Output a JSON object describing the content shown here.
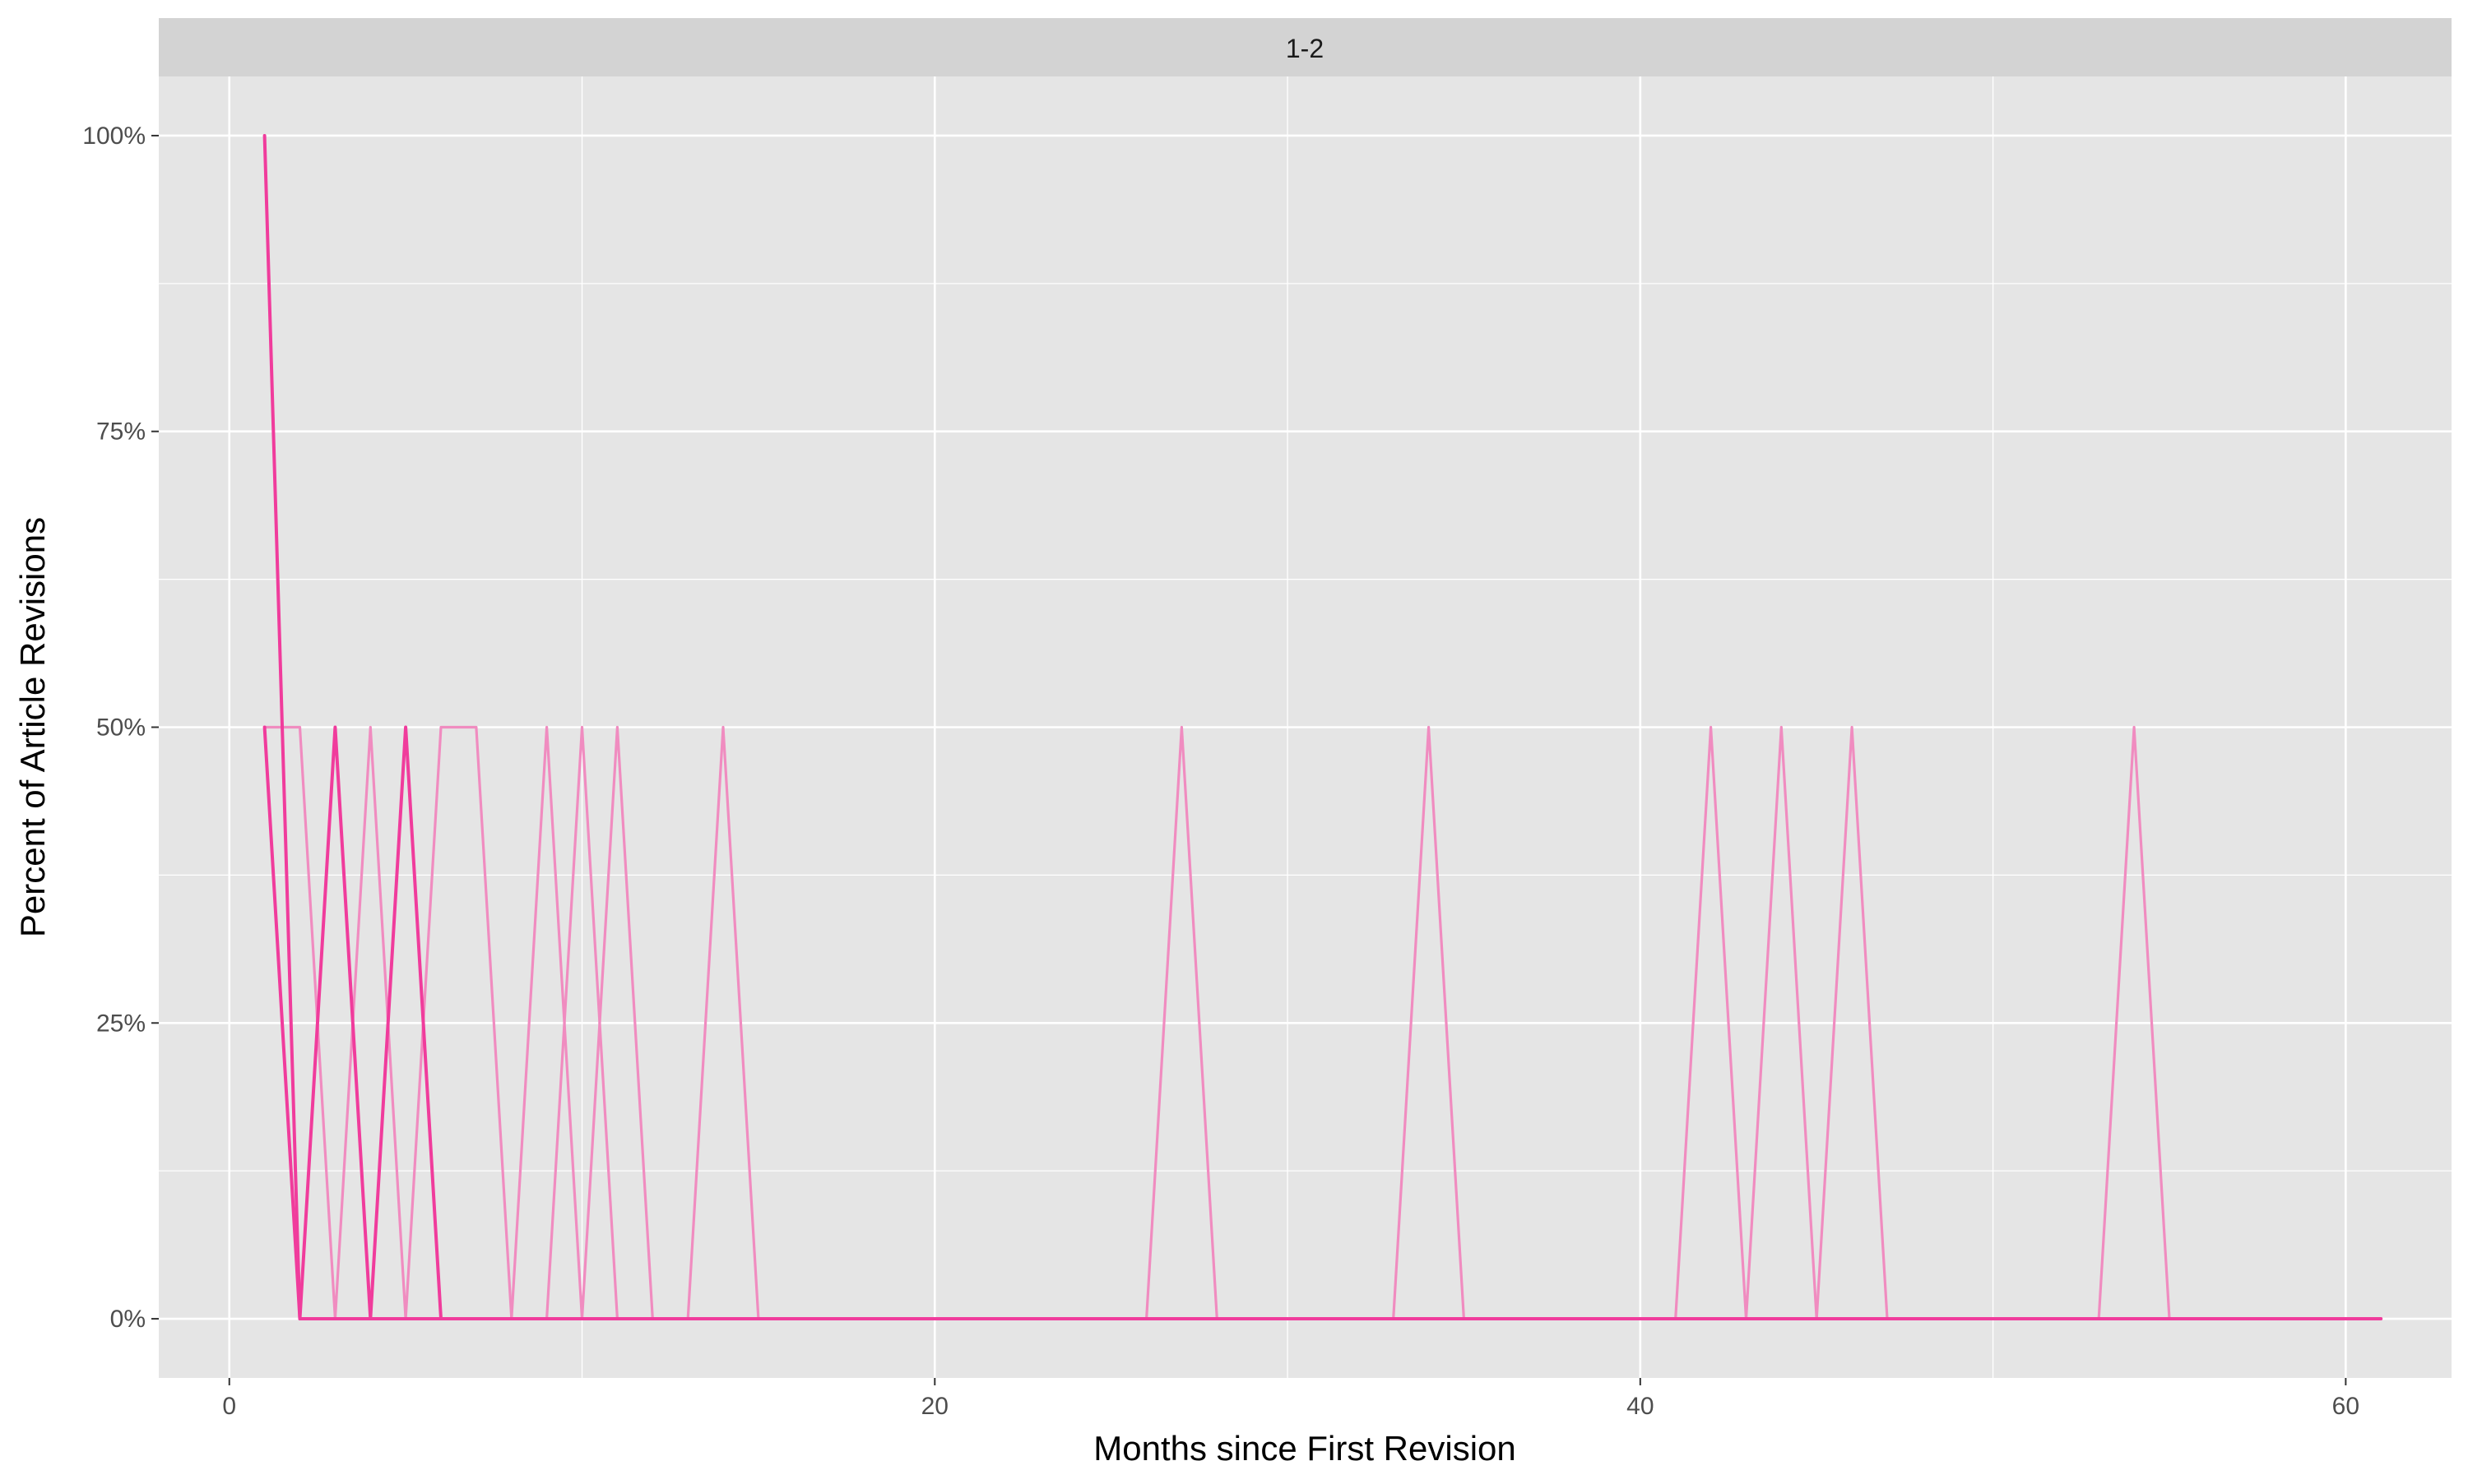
{
  "chart_data": {
    "type": "line",
    "facet_label": "1-2",
    "xlabel": "Months since First Revision",
    "ylabel": "Percent of Article Revisions",
    "xlim": [
      -2,
      63
    ],
    "ylim": [
      -5,
      105
    ],
    "x_ticks": [
      0,
      20,
      40,
      60
    ],
    "x_tick_labels": [
      "0",
      "20",
      "40",
      "60"
    ],
    "y_ticks": [
      0,
      25,
      50,
      75,
      100
    ],
    "y_tick_labels": [
      "0%",
      "25%",
      "50%",
      "75%",
      "100%"
    ],
    "grid": true,
    "legend": "none",
    "colors": {
      "panel_background": "#e5e5e5",
      "grid_major": "#ffffff",
      "strip_background": "#d3d3d3",
      "series_dark": "#f03c9c",
      "series_light": "#f08cc0"
    },
    "series": [
      {
        "shade": "dark",
        "x": [
          1,
          2,
          61
        ],
        "y": [
          100,
          0,
          0
        ]
      },
      {
        "shade": "dark",
        "x": [
          1,
          2,
          3,
          4,
          5,
          6
        ],
        "y": [
          50,
          0,
          50,
          0,
          50,
          0
        ]
      },
      {
        "shade": "light",
        "x": [
          1,
          2,
          3,
          4,
          5,
          6,
          7,
          8
        ],
        "y": [
          50,
          50,
          0,
          50,
          0,
          50,
          50,
          0
        ]
      },
      {
        "shade": "light",
        "x": [
          8,
          9,
          10,
          11,
          12
        ],
        "y": [
          0,
          50,
          0,
          50,
          0
        ]
      },
      {
        "shade": "light",
        "x": [
          9,
          10,
          11
        ],
        "y": [
          0,
          50,
          0
        ]
      },
      {
        "shade": "light",
        "x": [
          13,
          14,
          15
        ],
        "y": [
          0,
          50,
          0
        ]
      },
      {
        "shade": "light",
        "x": [
          26,
          27,
          28
        ],
        "y": [
          0,
          50,
          0
        ]
      },
      {
        "shade": "light",
        "x": [
          33,
          34,
          35
        ],
        "y": [
          0,
          50,
          0
        ]
      },
      {
        "shade": "light",
        "x": [
          41,
          42,
          43
        ],
        "y": [
          0,
          50,
          0
        ]
      },
      {
        "shade": "light",
        "x": [
          43,
          44,
          45
        ],
        "y": [
          0,
          50,
          0
        ]
      },
      {
        "shade": "light",
        "x": [
          45,
          46,
          47
        ],
        "y": [
          0,
          50,
          0
        ]
      },
      {
        "shade": "light",
        "x": [
          53,
          54,
          55
        ],
        "y": [
          0,
          50,
          0
        ]
      }
    ]
  }
}
